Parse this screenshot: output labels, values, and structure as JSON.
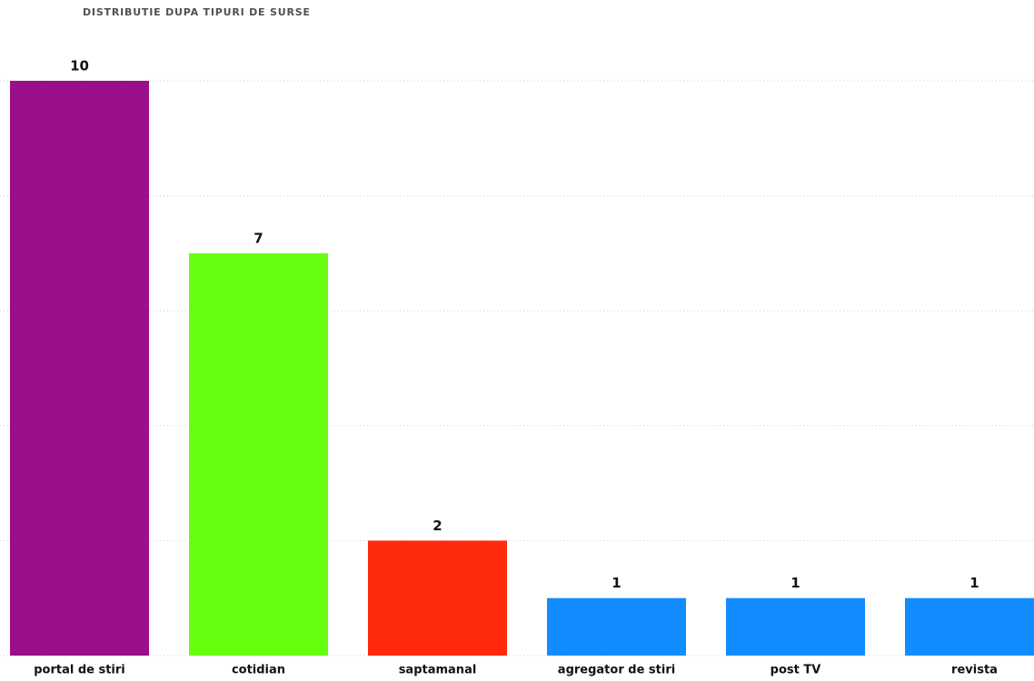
{
  "chart_data": {
    "type": "bar",
    "title": "DISTRIBUTIE DUPA TIPURI DE SURSE",
    "categories": [
      "portal de stiri",
      "cotidian",
      "saptamanal",
      "agregator de stiri",
      "post TV",
      "revista"
    ],
    "values": [
      10,
      7,
      2,
      1,
      1,
      1
    ],
    "colors": [
      "#9b0f8c",
      "#66ff0f",
      "#ff2a0c",
      "#118dff",
      "#118dff",
      "#118dff"
    ],
    "ylim": [
      0,
      10
    ],
    "yticks": [
      0,
      2,
      4,
      6,
      8,
      10
    ],
    "grid": true
  }
}
